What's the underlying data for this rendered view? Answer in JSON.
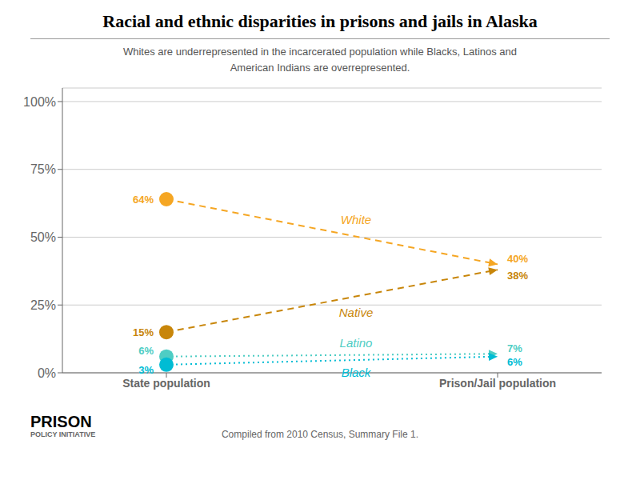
{
  "chart_data": {
    "type": "line",
    "title": "Racial and ethnic disparities in prisons and jails in Alaska",
    "subtitle": "Whites are underrepresented in the incarcerated population while Blacks, Latinos and\nAmerican Indians are overrepresented.",
    "annotations": [
      "Compiled from 2010 Census, Summary File 1.",
      "PRISON",
      "POLICY INITIATIVE"
    ],
    "categories": [
      "State population",
      "Prison/Jail population"
    ],
    "series": [
      {
        "name": "White",
        "color": "#f5a623",
        "line_style": "dashed",
        "values": [
          64,
          40
        ],
        "value_labels": [
          "64%",
          "40%"
        ]
      },
      {
        "name": "Native",
        "color": "#c8860a",
        "line_style": "dashed",
        "values": [
          15,
          38
        ],
        "value_labels": [
          "15%",
          "38%"
        ]
      },
      {
        "name": "Latino",
        "color": "#4ecdc4",
        "line_style": "dotted",
        "values": [
          6,
          7
        ],
        "value_labels": [
          "6%",
          "7%"
        ]
      },
      {
        "name": "Black",
        "color": "#00bcd4",
        "line_style": "dotted",
        "values": [
          3,
          6
        ],
        "value_labels": [
          "3%",
          "6%"
        ]
      }
    ],
    "ylim": [
      0,
      105
    ],
    "yticks": [
      {
        "value": 0,
        "label": "0%"
      },
      {
        "value": 25,
        "label": "25%"
      },
      {
        "value": 50,
        "label": "50%"
      },
      {
        "value": 75,
        "label": "75%"
      },
      {
        "value": 100,
        "label": "100%"
      }
    ],
    "grid": true,
    "data_labels": true,
    "marker": "circle"
  }
}
